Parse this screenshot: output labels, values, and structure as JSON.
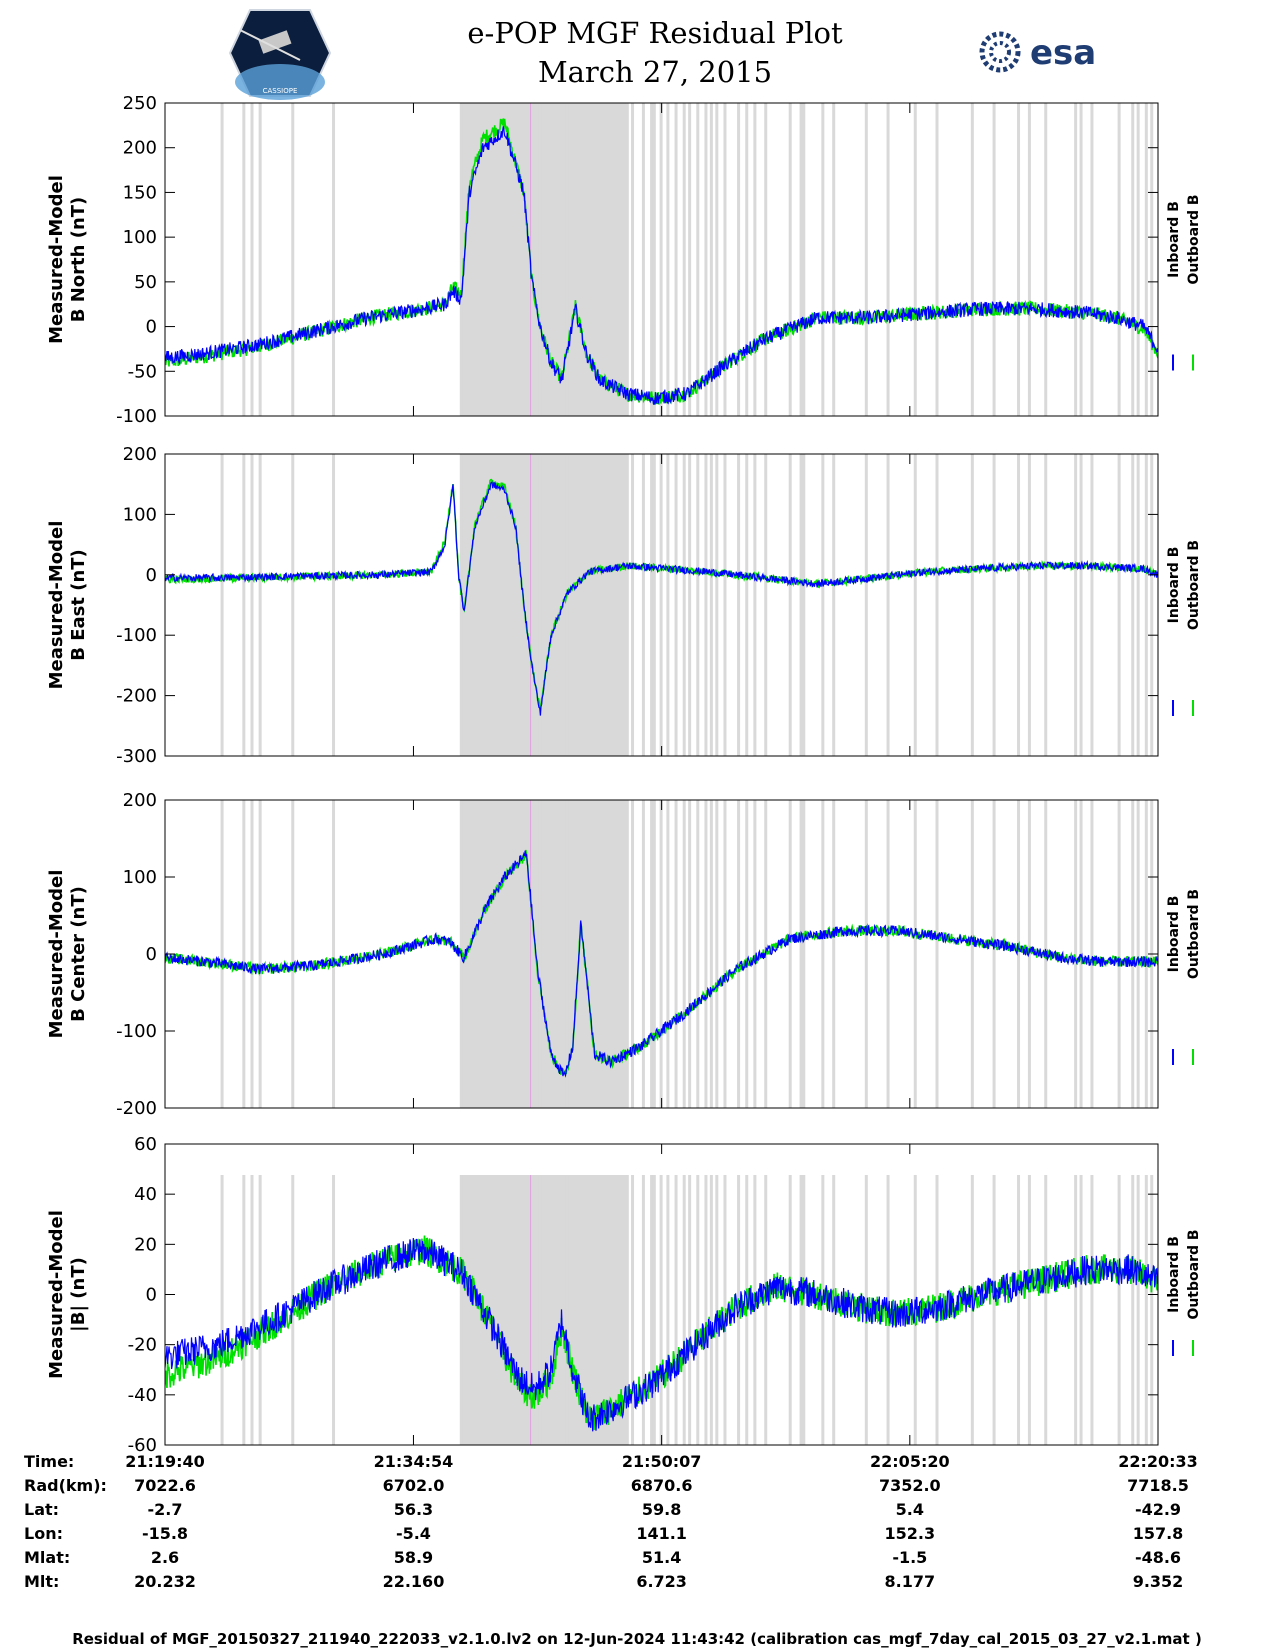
{
  "header": {
    "title_line1": "e-POP MGF Residual Plot",
    "title_line2": "March 27, 2015",
    "esa_logo_text": "esa",
    "cassiope_logo_text": "CASSIOPE"
  },
  "colors": {
    "inboard": "#0000ff",
    "outboard": "#00e000",
    "shade": "#d9d9d9",
    "marker": "#e0a0e0"
  },
  "legend": {
    "inboard": "Inboard B",
    "outboard": "Outboard B"
  },
  "chart_data": {
    "type": "line",
    "time_range_s": [
      0,
      3653
    ],
    "x_ticks": [
      {
        "t": 0,
        "label": "21:19:40"
      },
      {
        "t": 914,
        "label": "21:34:54"
      },
      {
        "t": 1827,
        "label": "21:50:07"
      },
      {
        "t": 2740,
        "label": "22:05:20"
      },
      {
        "t": 3653,
        "label": "22:20:33"
      }
    ],
    "shaded_region_s": [
      1090,
      1706
    ],
    "marker_line_s": 1345,
    "gray_bars_s": [
      210,
      290,
      320,
      350,
      470,
      620,
      1090,
      1130,
      1160,
      1210,
      1250,
      1290,
      1330,
      1380,
      1440,
      1480,
      1510,
      1540,
      1560,
      1590,
      1610,
      1640,
      1670,
      1700,
      1720,
      1760,
      1790,
      1800,
      1825,
      1850,
      1880,
      1910,
      1930,
      1960,
      1990,
      2010,
      2030,
      2060,
      2110,
      2140,
      2170,
      2210,
      2300,
      2340,
      2350,
      2420,
      2460,
      2580,
      2660,
      2760,
      2840,
      2970,
      3050,
      3140,
      3180,
      3240,
      3350,
      3370,
      3410,
      3510,
      3560,
      3580,
      3610,
      3630
    ],
    "panels": [
      {
        "ylabel": [
          "Measured-Model",
          "B North (nT)"
        ],
        "ylim": [
          -100,
          250
        ],
        "yticks": [
          -100,
          -50,
          0,
          50,
          100,
          150,
          200,
          250
        ],
        "series": [
          {
            "name": "Inboard B",
            "t": [
              0,
              150,
              350,
              550,
              750,
              950,
              1030,
              1060,
              1090,
              1120,
              1170,
              1250,
              1320,
              1350,
              1380,
              1420,
              1460,
              1510,
              1550,
              1600,
              1700,
              1800,
              1920,
              2050,
              2200,
              2400,
              2600,
              2800,
              3000,
              3200,
              3400,
              3500,
              3600,
              3653
            ],
            "values": [
              -35,
              -30,
              -20,
              -5,
              10,
              20,
              25,
              40,
              30,
              150,
              200,
              220,
              150,
              50,
              0,
              -40,
              -60,
              20,
              -30,
              -60,
              -75,
              -80,
              -75,
              -45,
              -15,
              10,
              10,
              15,
              20,
              20,
              15,
              10,
              0,
              -25
            ],
            "noise": 8
          },
          {
            "name": "Outboard B",
            "t": [
              0,
              150,
              350,
              550,
              750,
              950,
              1030,
              1060,
              1090,
              1120,
              1170,
              1250,
              1320,
              1350,
              1380,
              1420,
              1460,
              1510,
              1550,
              1600,
              1700,
              1800,
              1920,
              2050,
              2200,
              2400,
              2600,
              2800,
              3000,
              3200,
              3400,
              3500,
              3600,
              3653
            ],
            "values": [
              -40,
              -33,
              -22,
              -6,
              10,
              20,
              25,
              45,
              35,
              160,
              210,
              228,
              150,
              50,
              0,
              -40,
              -58,
              22,
              -30,
              -60,
              -75,
              -80,
              -75,
              -45,
              -15,
              10,
              10,
              15,
              20,
              20,
              15,
              10,
              -2,
              -30
            ],
            "noise": 8
          }
        ]
      },
      {
        "ylabel": [
          "Measured-Model",
          "B East (nT)"
        ],
        "ylim": [
          -300,
          200
        ],
        "yticks": [
          -300,
          -200,
          -100,
          0,
          100,
          200
        ],
        "series": [
          {
            "name": "Inboard B",
            "t": [
              0,
              200,
              500,
              800,
              980,
              1030,
              1060,
              1080,
              1100,
              1140,
              1200,
              1250,
              1290,
              1320,
              1350,
              1380,
              1420,
              1480,
              1560,
              1700,
              1850,
              2000,
              2200,
              2400,
              2600,
              2800,
              3000,
              3200,
              3400,
              3600,
              3653
            ],
            "values": [
              -5,
              -5,
              -2,
              0,
              5,
              50,
              150,
              0,
              -60,
              80,
              150,
              140,
              80,
              -50,
              -150,
              -230,
              -100,
              -30,
              5,
              15,
              10,
              5,
              -5,
              -15,
              -5,
              5,
              10,
              15,
              15,
              10,
              0
            ],
            "noise": 6
          },
          {
            "name": "Outboard B",
            "t": [
              0,
              200,
              500,
              800,
              980,
              1030,
              1060,
              1080,
              1100,
              1140,
              1200,
              1250,
              1290,
              1320,
              1350,
              1380,
              1420,
              1480,
              1560,
              1700,
              1850,
              2000,
              2200,
              2400,
              2600,
              2800,
              3000,
              3200,
              3400,
              3600,
              3653
            ],
            "values": [
              -8,
              -6,
              -3,
              0,
              5,
              55,
              155,
              0,
              -65,
              85,
              155,
              145,
              80,
              -50,
              -150,
              -225,
              -100,
              -30,
              5,
              15,
              10,
              5,
              -5,
              -15,
              -5,
              5,
              10,
              15,
              15,
              10,
              0
            ],
            "noise": 6
          }
        ]
      },
      {
        "ylabel": [
          "Measured-Model",
          "B Center (nT)"
        ],
        "ylim": [
          -200,
          200
        ],
        "yticks": [
          -200,
          -100,
          0,
          100,
          200
        ],
        "series": [
          {
            "name": "Inboard B",
            "t": [
              0,
              150,
              350,
              550,
              800,
              1000,
              1050,
              1100,
              1180,
              1250,
              1330,
              1370,
              1420,
              1470,
              1500,
              1530,
              1580,
              1640,
              1750,
              1900,
              2100,
              2300,
              2500,
              2700,
              2900,
              3100,
              3300,
              3450,
              3653
            ],
            "values": [
              -5,
              -10,
              -20,
              -15,
              0,
              20,
              15,
              -5,
              60,
              100,
              130,
              -20,
              -130,
              -160,
              -120,
              40,
              -130,
              -140,
              -120,
              -80,
              -20,
              20,
              30,
              30,
              20,
              10,
              -5,
              -10,
              -10
            ],
            "noise": 7
          },
          {
            "name": "Outboard B",
            "t": [
              0,
              150,
              350,
              550,
              800,
              1000,
              1050,
              1100,
              1180,
              1250,
              1330,
              1370,
              1420,
              1470,
              1500,
              1530,
              1580,
              1640,
              1750,
              1900,
              2100,
              2300,
              2500,
              2700,
              2900,
              3100,
              3300,
              3450,
              3653
            ],
            "values": [
              -5,
              -10,
              -20,
              -15,
              0,
              20,
              15,
              -5,
              60,
              100,
              130,
              -20,
              -130,
              -160,
              -120,
              40,
              -130,
              -140,
              -120,
              -80,
              -20,
              20,
              30,
              30,
              20,
              10,
              -5,
              -10,
              -10
            ],
            "noise": 7
          }
        ]
      },
      {
        "ylabel": [
          "Measured-Model",
          "|B| (nT)"
        ],
        "ylim": [
          -60,
          60
        ],
        "yticks": [
          -60,
          -40,
          -20,
          0,
          20,
          40,
          60
        ],
        "series": [
          {
            "name": "Inboard B",
            "t": [
              0,
              200,
              400,
              600,
              800,
              950,
              1050,
              1100,
              1200,
              1300,
              1360,
              1420,
              1460,
              1500,
              1560,
              1650,
              1800,
              1950,
              2100,
              2250,
              2400,
              2550,
              2700,
              2850,
              3000,
              3200,
              3400,
              3550,
              3653
            ],
            "values": [
              -25,
              -20,
              -10,
              3,
              13,
              18,
              12,
              8,
              -12,
              -33,
              -38,
              -30,
              -10,
              -30,
              -50,
              -45,
              -35,
              -20,
              -5,
              3,
              0,
              -5,
              -8,
              -5,
              0,
              5,
              10,
              10,
              5
            ],
            "noise": 6
          },
          {
            "name": "Outboard B",
            "t": [
              0,
              200,
              400,
              600,
              800,
              950,
              1050,
              1100,
              1200,
              1300,
              1360,
              1420,
              1460,
              1500,
              1560,
              1650,
              1800,
              1950,
              2100,
              2250,
              2400,
              2550,
              2700,
              2850,
              3000,
              3200,
              3400,
              3550,
              3653
            ],
            "values": [
              -32,
              -25,
              -12,
              3,
              13,
              18,
              12,
              8,
              -12,
              -36,
              -41,
              -33,
              -13,
              -30,
              -50,
              -45,
              -35,
              -20,
              -5,
              3,
              0,
              -5,
              -8,
              -5,
              0,
              5,
              10,
              10,
              5
            ],
            "noise": 6
          }
        ]
      }
    ],
    "info_rows": [
      {
        "label": "Time:",
        "values": [
          "21:19:40",
          "21:34:54",
          "21:50:07",
          "22:05:20",
          "22:20:33"
        ]
      },
      {
        "label": "Rad(km):",
        "values": [
          "7022.6",
          "6702.0",
          "6870.6",
          "7352.0",
          "7718.5"
        ]
      },
      {
        "label": "Lat:",
        "values": [
          "-2.7",
          "56.3",
          "59.8",
          "5.4",
          "-42.9"
        ]
      },
      {
        "label": "Lon:",
        "values": [
          "-15.8",
          "-5.4",
          "141.1",
          "152.3",
          "157.8"
        ]
      },
      {
        "label": "Mlat:",
        "values": [
          "2.6",
          "58.9",
          "51.4",
          "-1.5",
          "-48.6"
        ]
      },
      {
        "label": "Mlt:",
        "values": [
          "20.232",
          "22.160",
          "6.723",
          "8.177",
          "9.352"
        ]
      }
    ]
  },
  "footer": "Residual of MGF_20150327_211940_222033_v2.1.0.lv2 on 12-Jun-2024 11:43:42 (calibration cas_mgf_7day_cal_2015_03_27_v2.1.mat )"
}
